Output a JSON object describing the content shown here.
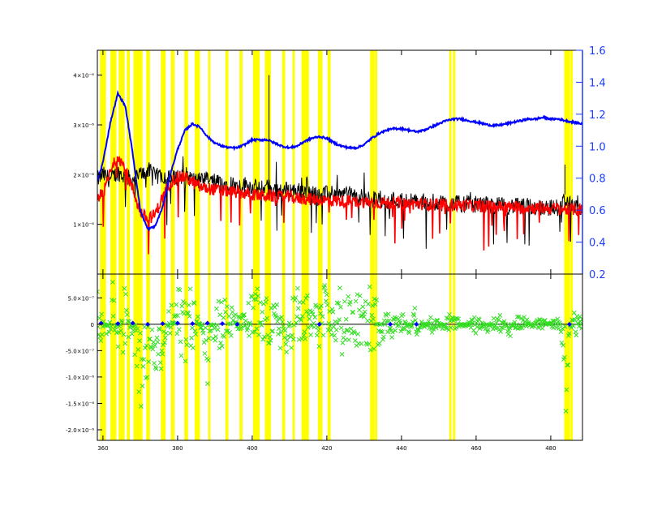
{
  "chart_data": [
    {
      "type": "line",
      "panel": "top",
      "title": "",
      "xlabel": "",
      "ylabel": "",
      "xlim": [
        358.5,
        488.5
      ],
      "ylim": [
        0,
        4.5
      ],
      "x_ticks": [
        360,
        380,
        400,
        420,
        440,
        460,
        480
      ],
      "x_tick_labels": [
        "360",
        "380",
        "400",
        "420",
        "440",
        "460",
        "480"
      ],
      "y_ticks": [
        1,
        2,
        3,
        4
      ],
      "y_tick_labels": [
        "1×10⁻⁶",
        "2×10⁻⁶",
        "3×10⁻⁶",
        "4×10⁻⁶"
      ],
      "y2lim": [
        0.2,
        1.6
      ],
      "y2_ticks": [
        0.2,
        0.4,
        0.6,
        0.8,
        1.0,
        1.2,
        1.4,
        1.6
      ],
      "y2_tick_labels": [
        "0.2",
        "0.4",
        "0.6",
        "0.8",
        "1.0",
        "1.2",
        "1.4",
        "1.6"
      ],
      "y2_color": "#1a3cff",
      "masked_regions": [
        [
          359.2,
          360.8
        ],
        [
          362.0,
          363.6
        ],
        [
          364.2,
          365.8
        ],
        [
          366.4,
          367.2
        ],
        [
          368.2,
          370.6
        ],
        [
          371.6,
          372.6
        ],
        [
          375.5,
          376.8
        ],
        [
          378.2,
          379.2
        ],
        [
          381.8,
          382.8
        ],
        [
          384.6,
          386.0
        ],
        [
          388.2,
          388.8
        ],
        [
          392.8,
          393.6
        ],
        [
          396.6,
          397.4
        ],
        [
          400.2,
          402.0
        ],
        [
          403.4,
          405.0
        ],
        [
          408.0,
          408.8
        ],
        [
          410.8,
          411.4
        ],
        [
          413.2,
          415.2
        ],
        [
          417.6,
          418.8
        ],
        [
          420.2,
          421.0
        ],
        [
          431.6,
          432.8
        ],
        [
          432.9,
          433.5
        ],
        [
          452.8,
          453.4
        ],
        [
          453.8,
          454.4
        ],
        [
          483.6,
          485.2
        ],
        [
          485.3,
          485.9
        ]
      ],
      "mask_color": "#ffff00",
      "series": [
        {
          "color": "#0000ff",
          "axis": "right",
          "x": [
            358.5,
            360,
            362,
            364,
            366,
            368,
            370,
            372,
            374,
            376,
            378,
            380,
            382,
            384,
            386,
            388,
            390,
            392,
            394,
            396,
            398,
            400,
            402,
            404,
            406,
            408,
            410,
            412,
            414,
            416,
            418,
            420,
            422,
            424,
            426,
            428,
            430,
            432,
            434,
            436,
            438,
            440,
            442,
            444,
            446,
            448,
            450,
            452,
            454,
            456,
            458,
            460,
            462,
            464,
            466,
            468,
            470,
            472,
            474,
            476,
            478,
            480,
            482,
            484,
            486,
            488.5
          ],
          "values": [
            0.78,
            0.9,
            1.15,
            1.33,
            1.25,
            0.95,
            0.6,
            0.48,
            0.5,
            0.62,
            0.82,
            0.98,
            1.1,
            1.14,
            1.12,
            1.06,
            1.02,
            1.0,
            0.99,
            0.99,
            1.01,
            1.04,
            1.04,
            1.04,
            1.02,
            1.0,
            0.99,
            1.0,
            1.03,
            1.05,
            1.06,
            1.05,
            1.02,
            1.0,
            0.99,
            0.99,
            1.01,
            1.05,
            1.08,
            1.1,
            1.11,
            1.11,
            1.1,
            1.09,
            1.1,
            1.12,
            1.14,
            1.16,
            1.17,
            1.17,
            1.16,
            1.15,
            1.14,
            1.13,
            1.13,
            1.14,
            1.15,
            1.16,
            1.17,
            1.17,
            1.18,
            1.17,
            1.17,
            1.16,
            1.15,
            1.14
          ]
        },
        {
          "color": "#000000",
          "axis": "left",
          "x": [
            358.5,
            360,
            362,
            364,
            366,
            368,
            370,
            372,
            374,
            376,
            378,
            380,
            382,
            384,
            386,
            388,
            390,
            392,
            394,
            396,
            398,
            400,
            402,
            404,
            406,
            408,
            410,
            412,
            414,
            416,
            418,
            420,
            422,
            424,
            426,
            428,
            430,
            432,
            434,
            436,
            438,
            440,
            442,
            444,
            446,
            448,
            450,
            452,
            454,
            456,
            458,
            460,
            462,
            464,
            466,
            468,
            470,
            472,
            474,
            476,
            478,
            480,
            482,
            484,
            486,
            488.5
          ],
          "values": [
            1.9,
            2.0,
            1.9,
            2.05,
            1.95,
            1.9,
            2.0,
            2.1,
            1.95,
            2.0,
            1.9,
            1.95,
            2.0,
            1.9,
            1.85,
            1.9,
            1.85,
            1.8,
            1.85,
            1.75,
            1.8,
            1.75,
            1.7,
            1.75,
            1.7,
            1.68,
            1.7,
            1.66,
            1.7,
            1.62,
            1.65,
            1.6,
            1.62,
            1.58,
            1.6,
            1.55,
            1.55,
            1.5,
            1.52,
            1.48,
            1.5,
            1.47,
            1.48,
            1.45,
            1.46,
            1.44,
            1.45,
            1.42,
            1.43,
            1.4,
            1.42,
            1.4,
            1.4,
            1.38,
            1.38,
            1.36,
            1.37,
            1.35,
            1.36,
            1.34,
            1.35,
            1.33,
            1.34,
            1.5,
            1.32,
            1.3
          ]
        },
        {
          "color": "#ff0000",
          "axis": "left",
          "x": [
            358.5,
            360,
            362,
            364,
            366,
            368,
            370,
            372,
            374,
            376,
            378,
            380,
            382,
            384,
            386,
            388,
            390,
            392,
            394,
            396,
            398,
            400,
            402,
            404,
            406,
            408,
            410,
            412,
            414,
            416,
            418,
            420,
            422,
            424,
            426,
            428,
            430,
            432,
            434,
            436,
            438,
            440,
            442,
            444,
            446,
            448,
            450,
            452,
            454,
            456,
            458,
            460,
            462,
            464,
            466,
            468,
            470,
            472,
            474,
            476,
            478,
            480,
            482,
            484,
            486,
            488.5
          ],
          "values": [
            1.55,
            1.6,
            2.05,
            2.4,
            2.1,
            1.7,
            1.25,
            1.1,
            1.2,
            1.55,
            1.85,
            1.95,
            1.95,
            1.85,
            1.75,
            1.72,
            1.7,
            1.68,
            1.66,
            1.64,
            1.62,
            1.6,
            1.58,
            1.58,
            1.56,
            1.55,
            1.55,
            1.52,
            1.52,
            1.5,
            1.5,
            1.48,
            1.48,
            1.47,
            1.46,
            1.45,
            1.45,
            1.44,
            1.44,
            1.43,
            1.43,
            1.42,
            1.42,
            1.41,
            1.41,
            1.4,
            1.4,
            1.39,
            1.39,
            1.38,
            1.38,
            1.37,
            1.37,
            1.36,
            1.36,
            1.35,
            1.35,
            1.34,
            1.34,
            1.33,
            1.33,
            1.32,
            1.32,
            1.3,
            1.3,
            1.29
          ]
        }
      ]
    },
    {
      "type": "scatter",
      "panel": "bottom",
      "title": "",
      "xlabel": "",
      "ylabel": "",
      "xlim": [
        358.5,
        488.5
      ],
      "ylim": [
        -2.2,
        0.95
      ],
      "x_ticks": [
        360,
        380,
        400,
        420,
        440,
        460,
        480
      ],
      "x_tick_labels": [
        "360",
        "380",
        "400",
        "420",
        "440",
        "460",
        "480"
      ],
      "y_ticks": [
        0.5,
        0,
        -0.5,
        -1.0,
        -1.5,
        -2.0
      ],
      "y_tick_labels": [
        "5.0×10⁻⁷",
        "0",
        "-5.0×10⁻⁷",
        "-1.0×10⁻⁶",
        "-1.5×10⁻⁶",
        "-2.0×10⁻⁶"
      ],
      "masked_regions": [
        [
          359.2,
          360.8
        ],
        [
          362.0,
          363.6
        ],
        [
          364.2,
          365.8
        ],
        [
          366.4,
          367.2
        ],
        [
          368.2,
          370.6
        ],
        [
          371.6,
          372.6
        ],
        [
          375.5,
          376.8
        ],
        [
          378.2,
          379.2
        ],
        [
          381.8,
          382.8
        ],
        [
          384.6,
          386.0
        ],
        [
          388.2,
          388.8
        ],
        [
          392.8,
          393.6
        ],
        [
          396.6,
          397.4
        ],
        [
          400.2,
          402.0
        ],
        [
          403.4,
          405.0
        ],
        [
          408.0,
          408.8
        ],
        [
          410.8,
          411.4
        ],
        [
          413.2,
          415.2
        ],
        [
          417.6,
          418.8
        ],
        [
          420.2,
          421.0
        ],
        [
          431.6,
          432.8
        ],
        [
          432.9,
          433.5
        ],
        [
          452.8,
          453.4
        ],
        [
          453.8,
          454.4
        ],
        [
          483.6,
          485.2
        ],
        [
          485.3,
          485.9
        ]
      ],
      "mask_color": "#ffff00",
      "zero_line": true,
      "series": [
        {
          "color": "#33dd22",
          "marker": "x",
          "x": [
            359,
            361,
            362.5,
            364,
            365.5,
            367,
            368.5,
            370,
            371.5,
            373,
            374.5,
            376,
            377.5,
            379,
            380.5,
            382,
            383.5,
            385,
            386.5,
            388,
            389.5,
            391,
            392.5,
            394,
            395.5,
            397,
            398.5,
            400,
            401.5,
            403,
            404.5,
            406,
            407.5,
            409,
            410.5,
            412,
            413.5,
            415,
            416.5,
            418,
            419.5,
            421,
            422.5,
            424,
            425.5,
            427,
            428.5,
            430,
            431.5,
            433,
            434.5,
            436,
            437.5,
            439,
            440.5,
            442,
            443.5,
            445,
            446.5,
            448,
            449.5,
            451,
            452.5,
            454,
            455.5,
            457,
            458.5,
            460,
            461.5,
            463,
            464.5,
            466,
            467.5,
            469,
            470.5,
            472,
            473.5,
            475,
            476.5,
            478,
            479.5,
            481,
            482.5,
            484,
            485.5,
            487,
            488.5
          ],
          "values": [
            0.6,
            -0.3,
            0.85,
            -0.5,
            0.7,
            0.3,
            -0.9,
            -1.7,
            -1.2,
            -0.6,
            -1.0,
            -0.8,
            0.2,
            0.5,
            0.7,
            0.8,
            0.6,
            0.4,
            -0.2,
            -1.3,
            0.3,
            0.6,
            0.5,
            0.4,
            0.2,
            0.1,
            0.3,
            0.6,
            0.7,
            0.4,
            0.5,
            0.3,
            0.6,
            -0.7,
            0.5,
            0.8,
            0.4,
            0.6,
            0.3,
            0.5,
            0.7,
            0.2,
            0.6,
            0.8,
            0.5,
            0.4,
            0.6,
            0.3,
            0.7,
            0.5,
            0.4,
            0.2,
            0.3,
            0.1,
            0.2,
            -0.2,
            0.3,
            0.1,
            -0.1,
            0.2,
            0.1,
            -0.1,
            0.2,
            0.1,
            0.1,
            -0.1,
            0.1,
            0.2,
            0.1,
            -0.2,
            0.1,
            0.2,
            0.1,
            -0.3,
            0.1,
            0.2,
            0.1,
            -0.1,
            0.1,
            0.1,
            0.0,
            0.1,
            0.1,
            -1.75,
            0.1,
            0.3,
            0.1
          ]
        },
        {
          "color": "#0000ff",
          "marker": "diamond",
          "x": [
            359.5,
            364,
            368,
            372,
            376,
            380,
            384,
            388,
            392,
            396,
            418,
            437,
            444,
            485
          ],
          "values": [
            0.02,
            0.01,
            0.02,
            0.0,
            0.01,
            0.02,
            0.01,
            0.02,
            0.01,
            0.0,
            0.0,
            0.0,
            0.0,
            0.0
          ]
        }
      ]
    }
  ]
}
